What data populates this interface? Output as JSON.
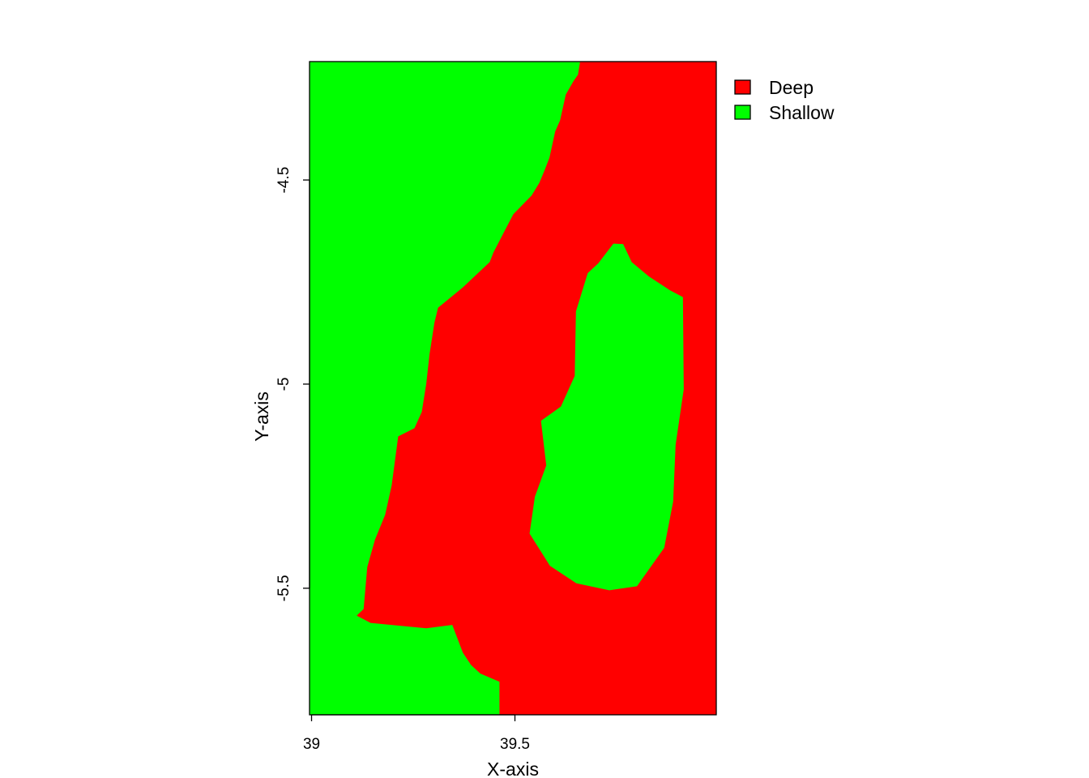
{
  "chart_data": {
    "type": "heatmap",
    "subtype": "categorical-raster",
    "title": "",
    "xlabel": "X-axis",
    "ylabel": "Y-axis",
    "xlim": [
      38.995,
      39.995
    ],
    "ylim": [
      -5.81,
      -4.21
    ],
    "x_ticks": [
      39,
      39.5
    ],
    "x_tick_labels": [
      "39",
      "39.5"
    ],
    "y_ticks": [
      -4.5,
      -5,
      -5.5
    ],
    "y_tick_labels": [
      "-4.5",
      "-5",
      "-5.5"
    ],
    "categories": [
      {
        "name": "Deep",
        "color": "#FF0000"
      },
      {
        "name": "Shallow",
        "color": "#00FF00"
      }
    ],
    "legend": {
      "placement": "top-right, outside plot",
      "entries": [
        "Deep",
        "Shallow"
      ]
    },
    "boundary_note": "Deep region lies east of the west boundary line; a Shallow lake lies inside it; Shallow also fills the far south-west.",
    "deep_west_boundary": [
      {
        "y": -4.205,
        "x": 39.661
      },
      {
        "y": -4.242,
        "x": 39.655
      },
      {
        "y": -4.258,
        "x": 39.644
      },
      {
        "y": -4.291,
        "x": 39.625
      },
      {
        "y": -4.354,
        "x": 39.611
      },
      {
        "y": -4.381,
        "x": 39.599
      },
      {
        "y": -4.445,
        "x": 39.585
      },
      {
        "y": -4.476,
        "x": 39.573
      },
      {
        "y": -4.507,
        "x": 39.56
      },
      {
        "y": -4.538,
        "x": 39.541
      },
      {
        "y": -4.584,
        "x": 39.496
      },
      {
        "y": -4.626,
        "x": 39.474
      },
      {
        "y": -4.678,
        "x": 39.447
      },
      {
        "y": -4.701,
        "x": 39.438
      },
      {
        "y": -4.763,
        "x": 39.372
      },
      {
        "y": -4.813,
        "x": 39.311
      },
      {
        "y": -4.85,
        "x": 39.302
      },
      {
        "y": -4.927,
        "x": 39.29
      },
      {
        "y": -4.999,
        "x": 39.282
      },
      {
        "y": -5.068,
        "x": 39.271
      },
      {
        "y": -5.108,
        "x": 39.253
      },
      {
        "y": -5.128,
        "x": 39.213
      },
      {
        "y": -5.248,
        "x": 39.197
      },
      {
        "y": -5.32,
        "x": 39.181
      },
      {
        "y": -5.381,
        "x": 39.156
      },
      {
        "y": -5.448,
        "x": 39.137
      },
      {
        "y": -5.551,
        "x": 39.128
      },
      {
        "y": -5.567,
        "x": 39.111
      },
      {
        "y": -5.585,
        "x": 39.145
      },
      {
        "y": -5.598,
        "x": 39.282
      },
      {
        "y": -5.59,
        "x": 39.346
      },
      {
        "y": -5.658,
        "x": 39.372
      },
      {
        "y": -5.688,
        "x": 39.392
      },
      {
        "y": -5.709,
        "x": 39.415
      },
      {
        "y": -5.729,
        "x": 39.462
      },
      {
        "y": -5.81,
        "x": 39.462
      }
    ],
    "shallow_lake_boundary": [
      {
        "x": 39.742,
        "y": -4.656
      },
      {
        "x": 39.766,
        "y": -4.657
      },
      {
        "x": 39.787,
        "y": -4.701
      },
      {
        "x": 39.829,
        "y": -4.736
      },
      {
        "x": 39.881,
        "y": -4.77
      },
      {
        "x": 39.913,
        "y": -4.787
      },
      {
        "x": 39.915,
        "y": -5.013
      },
      {
        "x": 39.895,
        "y": -5.149
      },
      {
        "x": 39.889,
        "y": -5.288
      },
      {
        "x": 39.867,
        "y": -5.401
      },
      {
        "x": 39.8,
        "y": -5.495
      },
      {
        "x": 39.732,
        "y": -5.505
      },
      {
        "x": 39.651,
        "y": -5.488
      },
      {
        "x": 39.586,
        "y": -5.445
      },
      {
        "x": 39.536,
        "y": -5.366
      },
      {
        "x": 39.549,
        "y": -5.276
      },
      {
        "x": 39.577,
        "y": -5.199
      },
      {
        "x": 39.564,
        "y": -5.09
      },
      {
        "x": 39.613,
        "y": -5.055
      },
      {
        "x": 39.647,
        "y": -4.98
      },
      {
        "x": 39.65,
        "y": -4.822
      },
      {
        "x": 39.679,
        "y": -4.728
      },
      {
        "x": 39.705,
        "y": -4.704
      }
    ]
  }
}
